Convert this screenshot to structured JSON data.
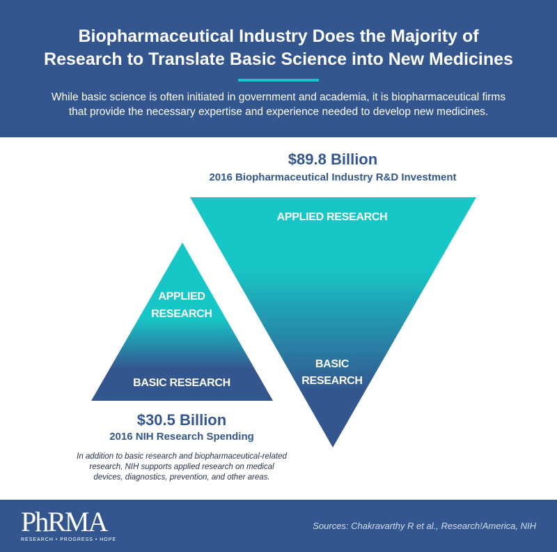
{
  "header": {
    "title_line1": "Biopharmaceutical Industry Does the Majority of",
    "title_line2": "Research to Translate Basic Science into New Medicines",
    "subtitle_line1": "While basic science is often initiated in government and academia, it is biopharmaceutical firms",
    "subtitle_line2": "that provide the necessary expertise and experience needed to develop new medicines."
  },
  "industry": {
    "amount": "$89.8 Billion",
    "caption": "2016 Biopharmaceutical Industry R&D Investment",
    "applied_label": "APPLIED RESEARCH",
    "basic_label_line1": "BASIC",
    "basic_label_line2": "RESEARCH"
  },
  "nih": {
    "amount": "$30.5 Billion",
    "caption": "2016 NIH Research Spending",
    "applied_label_line1": "APPLIED",
    "applied_label_line2": "RESEARCH",
    "basic_label": "BASIC RESEARCH",
    "note_line1": "In addition to basic research and biopharmaceutical-related",
    "note_line2": "research, NIH supports applied research on medical",
    "note_line3": "devices, diagnostics, prevention, and other areas."
  },
  "footer": {
    "logo_text": "PhRMA",
    "logo_tagline": "RESEARCH • PROGRESS • HOPE",
    "sources": "Sources: Chakravarthy R et al., Research!America, NIH"
  },
  "colors": {
    "navy": "#33568f",
    "teal": "#17c6c6"
  }
}
